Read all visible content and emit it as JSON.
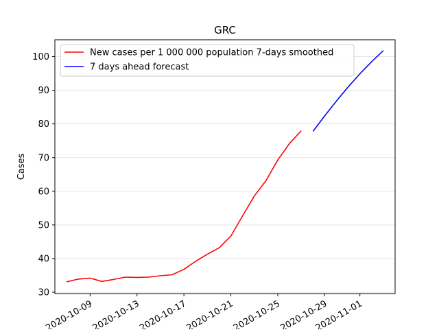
{
  "chart_data": {
    "type": "line",
    "title": "GRC",
    "xlabel": "",
    "ylabel": "Cases",
    "ylim": [
      29.6,
      105.0
    ],
    "xlim": [
      "2020-10-06T00:00",
      "2020-11-04T00:00"
    ],
    "yticks": [
      30,
      40,
      50,
      60,
      70,
      80,
      90,
      100
    ],
    "xticks": [
      "2020-10-09",
      "2020-10-13",
      "2020-10-17",
      "2020-10-21",
      "2020-10-25",
      "2020-10-29",
      "2020-11-01"
    ],
    "grid": "horizontal",
    "legend_placement": "top-left",
    "series": [
      {
        "name": "New cases per 1 000 000 population 7-days smoothed",
        "color": "#ff0000",
        "x": [
          "2020-10-07",
          "2020-10-08",
          "2020-10-09",
          "2020-10-10",
          "2020-10-11",
          "2020-10-12",
          "2020-10-13",
          "2020-10-14",
          "2020-10-15",
          "2020-10-16",
          "2020-10-17",
          "2020-10-18",
          "2020-10-19",
          "2020-10-20",
          "2020-10-21",
          "2020-10-22",
          "2020-10-23",
          "2020-10-24",
          "2020-10-25",
          "2020-10-26",
          "2020-10-27"
        ],
        "values": [
          33.1,
          33.9,
          34.2,
          33.2,
          33.8,
          34.5,
          34.4,
          34.5,
          34.9,
          35.2,
          36.8,
          39.2,
          41.3,
          43.2,
          46.7,
          52.7,
          58.6,
          63.2,
          69.3,
          74.2,
          78.0
        ]
      },
      {
        "name": "7 days ahead forecast",
        "color": "#0000ff",
        "x": [
          "2020-10-28",
          "2020-10-29",
          "2020-10-30",
          "2020-10-31",
          "2020-11-01",
          "2020-11-02",
          "2020-11-03"
        ],
        "values": [
          77.8,
          82.4,
          86.8,
          91.0,
          94.9,
          98.5,
          101.8
        ]
      }
    ]
  }
}
